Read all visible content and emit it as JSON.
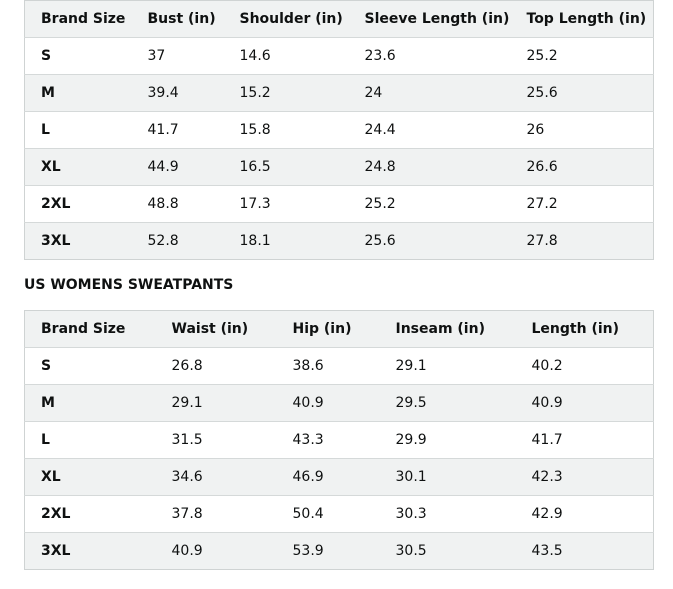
{
  "tops": {
    "headers": [
      "Brand Size",
      "Bust (in)",
      "Shoulder (in)",
      "Sleeve Length (in)",
      "Top Length (in)"
    ],
    "rows": [
      [
        "S",
        "37",
        "14.6",
        "23.6",
        "25.2"
      ],
      [
        "M",
        "39.4",
        "15.2",
        "24",
        "25.6"
      ],
      [
        "L",
        "41.7",
        "15.8",
        "24.4",
        "26"
      ],
      [
        "XL",
        "44.9",
        "16.5",
        "24.8",
        "26.6"
      ],
      [
        "2XL",
        "48.8",
        "17.3",
        "25.2",
        "27.2"
      ],
      [
        "3XL",
        "52.8",
        "18.1",
        "25.6",
        "27.8"
      ]
    ]
  },
  "sweatpants": {
    "title": "US WOMENS SWEATPANTS",
    "headers": [
      "Brand Size",
      "Waist (in)",
      "Hip (in)",
      "Inseam (in)",
      "Length (in)"
    ],
    "rows": [
      [
        "S",
        "26.8",
        "38.6",
        "29.1",
        "40.2"
      ],
      [
        "M",
        "29.1",
        "40.9",
        "29.5",
        "40.9"
      ],
      [
        "L",
        "31.5",
        "43.3",
        "29.9",
        "41.7"
      ],
      [
        "XL",
        "34.6",
        "46.9",
        "30.1",
        "42.3"
      ],
      [
        "2XL",
        "37.8",
        "50.4",
        "30.3",
        "42.9"
      ],
      [
        "3XL",
        "40.9",
        "53.9",
        "30.5",
        "43.5"
      ]
    ]
  }
}
